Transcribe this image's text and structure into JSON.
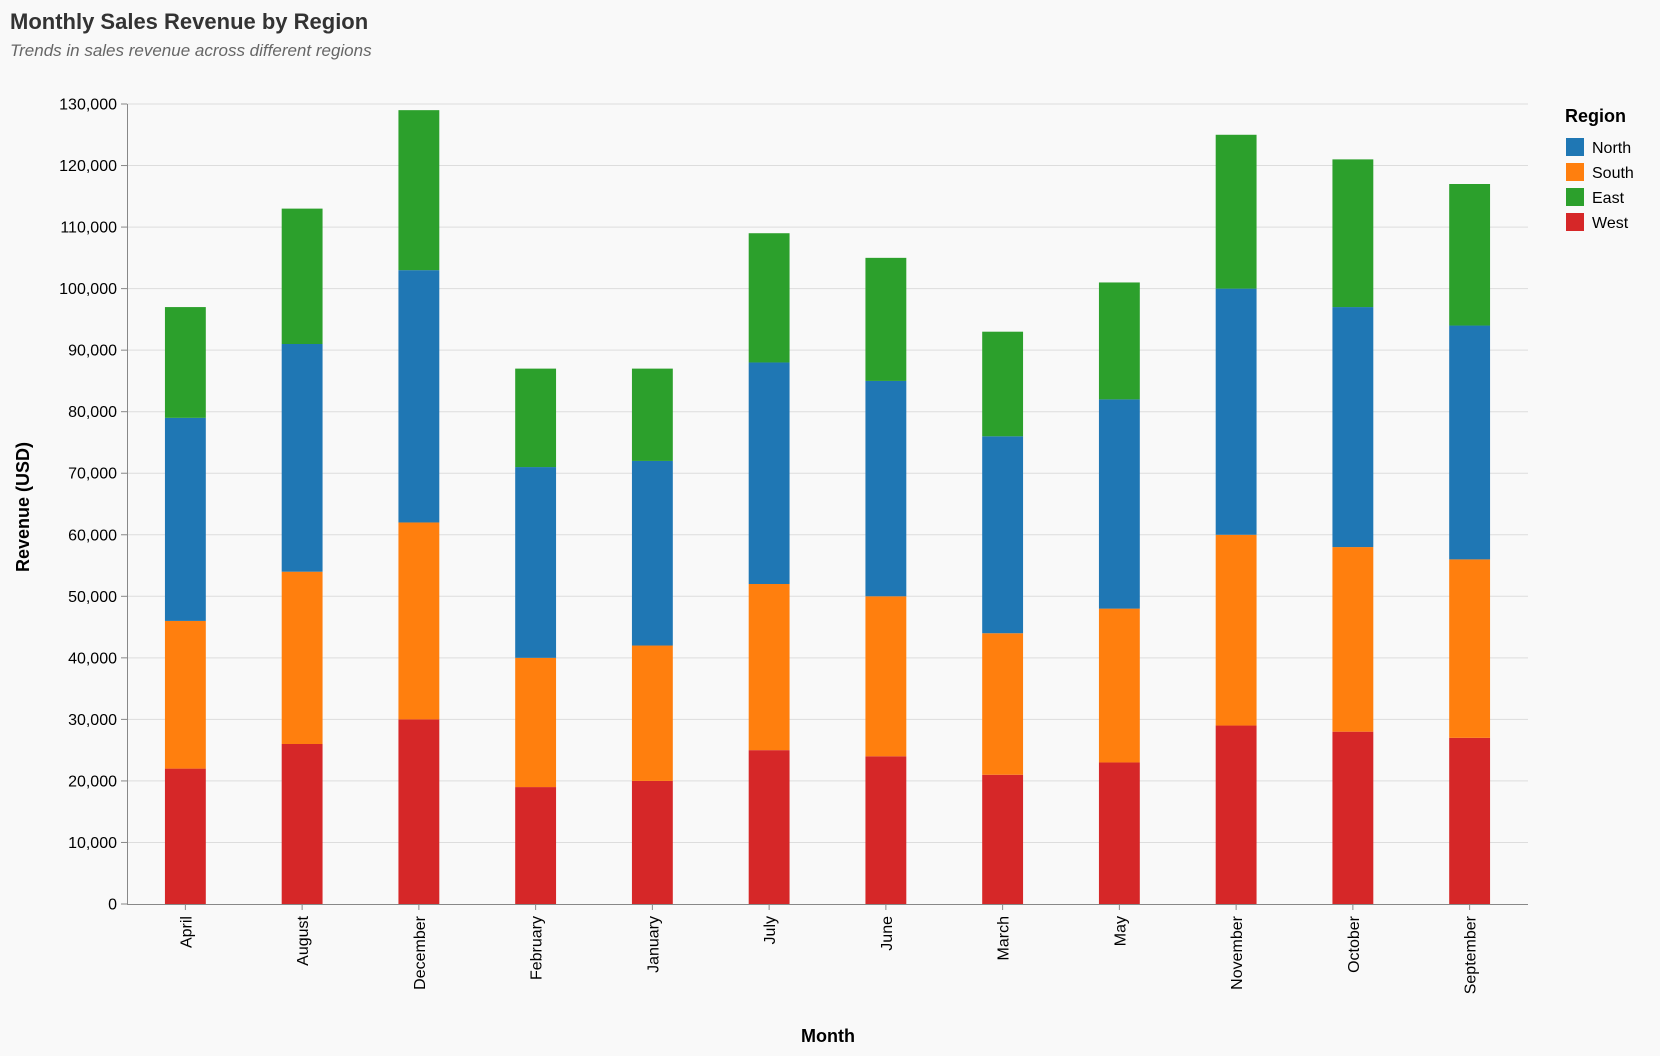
{
  "chart_data": {
    "type": "bar",
    "stacked": true,
    "title": "Monthly Sales Revenue by Region",
    "subtitle": "Trends in sales revenue across different regions",
    "xlabel": "Month",
    "ylabel": "Revenue (USD)",
    "ylim": [
      0,
      130000
    ],
    "yticks": [
      0,
      10000,
      20000,
      30000,
      40000,
      50000,
      60000,
      70000,
      80000,
      90000,
      100000,
      110000,
      120000,
      130000
    ],
    "ytick_labels": [
      "0",
      "10,000",
      "20,000",
      "30,000",
      "40,000",
      "50,000",
      "60,000",
      "70,000",
      "80,000",
      "90,000",
      "100,000",
      "110,000",
      "120,000",
      "130,000"
    ],
    "grid": true,
    "legend": {
      "title": "Region",
      "placement": "right"
    },
    "categories": [
      "April",
      "August",
      "December",
      "February",
      "January",
      "July",
      "June",
      "March",
      "May",
      "November",
      "October",
      "September"
    ],
    "stack_order": [
      "West",
      "South",
      "North",
      "East"
    ],
    "series": [
      {
        "name": "North",
        "color": "#1f77b4",
        "values": [
          33000,
          37000,
          41000,
          31000,
          30000,
          36000,
          35000,
          32000,
          34000,
          40000,
          39000,
          38000
        ]
      },
      {
        "name": "South",
        "color": "#ff7f0e",
        "values": [
          24000,
          28000,
          32000,
          21000,
          22000,
          27000,
          26000,
          23000,
          25000,
          31000,
          30000,
          29000
        ]
      },
      {
        "name": "East",
        "color": "#2ca02c",
        "values": [
          18000,
          22000,
          26000,
          16000,
          15000,
          21000,
          20000,
          17000,
          19000,
          25000,
          24000,
          23000
        ]
      },
      {
        "name": "West",
        "color": "#d62728",
        "values": [
          22000,
          26000,
          30000,
          19000,
          20000,
          25000,
          24000,
          21000,
          23000,
          29000,
          28000,
          27000
        ]
      }
    ]
  }
}
